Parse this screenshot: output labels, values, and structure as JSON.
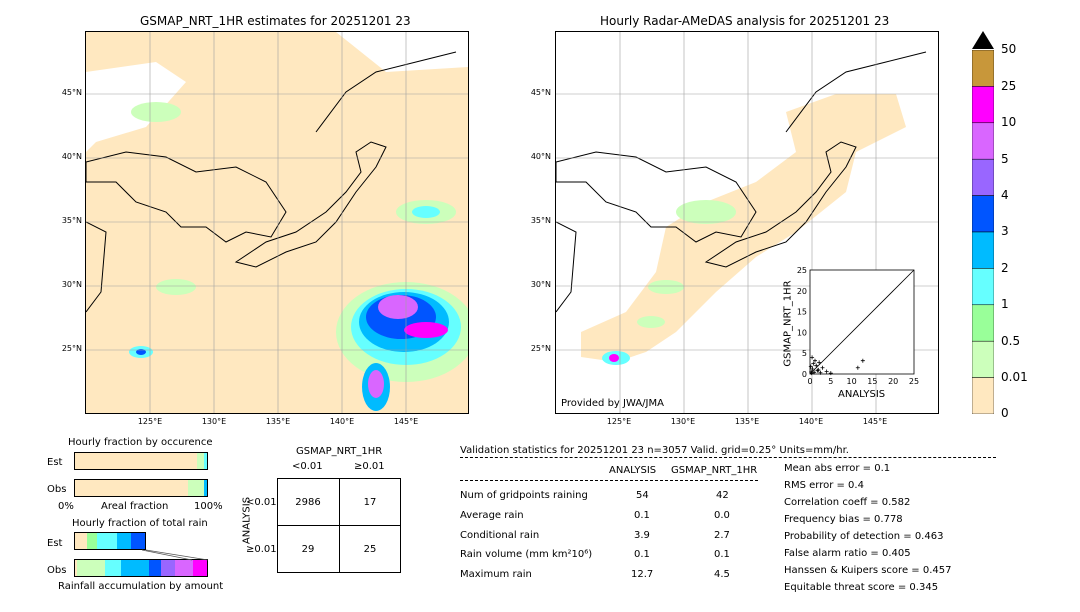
{
  "maps": {
    "left_title": "GSMAP_NRT_1HR estimates for 20251201 23",
    "right_title": "Hourly Radar-AMeDAS analysis for 20251201 23",
    "lat_ticks": [
      "45°N",
      "40°N",
      "35°N",
      "30°N",
      "25°N"
    ],
    "lon_ticks": [
      "125°E",
      "130°E",
      "135°E",
      "140°E",
      "145°E"
    ],
    "provided_by": "Provided by JWA/JMA"
  },
  "colorbar": {
    "labels": [
      "50",
      "25",
      "10",
      "5",
      "4",
      "3",
      "2",
      "1",
      "0.5",
      "0.01",
      "0"
    ],
    "colors": [
      "#c8973a",
      "#ff00ff",
      "#d966ff",
      "#9966ff",
      "#0055ff",
      "#00bbff",
      "#66ffff",
      "#99ff99",
      "#ccffbb",
      "#ffe8c0"
    ]
  },
  "scatter": {
    "xlabel": "ANALYSIS",
    "ylabel": "GSMAP_NRT_1HR",
    "ticks": [
      "0",
      "5",
      "10",
      "15",
      "20",
      "25"
    ]
  },
  "fraction": {
    "occurrence_title": "Hourly fraction by occurence",
    "est_label": "Est",
    "obs_label": "Obs",
    "axis_left": "0%",
    "axis_mid": "Areal fraction",
    "axis_right": "100%",
    "total_title": "Hourly fraction of total rain",
    "accum_label": "Rainfall accumulation by amount"
  },
  "contingency": {
    "title": "GSMAP_NRT_1HR",
    "col_lt": "<0.01",
    "col_ge": "≥0.01",
    "row_axis": "ANALYSIS",
    "row_lt": "<0.01",
    "row_ge": "≥0.01",
    "cells": [
      "2986",
      "17",
      "29",
      "25"
    ]
  },
  "validation": {
    "header": "Validation statistics for 20251201 23  n=3057 Valid. grid=0.25° Units=mm/hr.",
    "col_analysis": "ANALYSIS",
    "col_gsmap": "GSMAP_NRT_1HR",
    "rows": [
      {
        "label": "Num of gridpoints raining",
        "analysis": "54",
        "gsmap": "42"
      },
      {
        "label": "Average rain",
        "analysis": "0.1",
        "gsmap": "0.0"
      },
      {
        "label": "Conditional rain",
        "analysis": "3.9",
        "gsmap": "2.7"
      },
      {
        "label": "Rain volume (mm km²10⁶)",
        "analysis": "0.1",
        "gsmap": "0.1"
      },
      {
        "label": "Maximum rain",
        "analysis": "12.7",
        "gsmap": "4.5"
      }
    ],
    "scores": [
      "Mean abs error =    0.1",
      "RMS error =    0.4",
      "Correlation coeff =  0.582",
      "Frequency bias =  0.778",
      "Probability of detection =  0.463",
      "False alarm ratio =  0.405",
      "Hanssen & Kuipers score =  0.457",
      "Equitable threat score =  0.345"
    ]
  },
  "chart_data": {
    "type": "scatter",
    "xlabel": "ANALYSIS",
    "ylabel": "GSMAP_NRT_1HR",
    "xlim": [
      0,
      25
    ],
    "ylim": [
      0,
      25
    ],
    "points": [
      [
        0.3,
        0.5
      ],
      [
        0.6,
        1.2
      ],
      [
        1.0,
        0.4
      ],
      [
        1.5,
        2.0
      ],
      [
        2.0,
        1.0
      ],
      [
        0.8,
        2.5
      ],
      [
        2.5,
        0.3
      ],
      [
        3.0,
        1.5
      ],
      [
        1.2,
        3.2
      ],
      [
        4.0,
        0.6
      ],
      [
        0.4,
        0.2
      ],
      [
        0.2,
        1.8
      ],
      [
        11.5,
        1.5
      ],
      [
        12.7,
        3.2
      ],
      [
        5.0,
        0.2
      ],
      [
        1.8,
        0.8
      ],
      [
        2.2,
        2.8
      ],
      [
        0.5,
        4.0
      ]
    ]
  }
}
